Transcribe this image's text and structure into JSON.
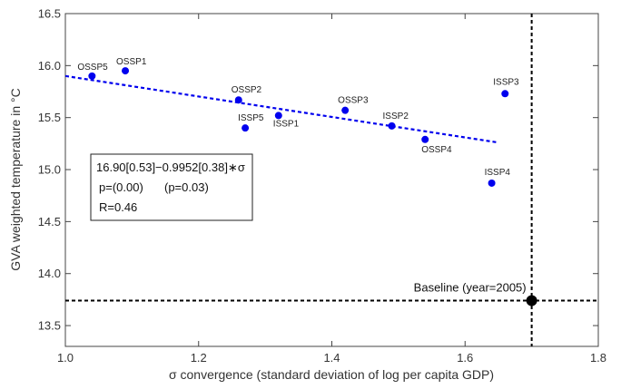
{
  "chart_data": {
    "type": "scatter",
    "title": "",
    "xlabel": "σ convergence (standard deviation of log per capita GDP)",
    "ylabel": "GVA weighted temperature in °C",
    "xlim": [
      1.0,
      1.8
    ],
    "ylim": [
      13.3,
      16.5
    ],
    "xticks": [
      "1.0",
      "1.2",
      "1.4",
      "1.6",
      "1.8"
    ],
    "yticks": [
      "13.5",
      "14.0",
      "14.5",
      "15.0",
      "15.5",
      "16.0",
      "16.5"
    ],
    "grid": false,
    "point_color": "#0000ee",
    "points": [
      {
        "label": "OSSP5",
        "x": 1.04,
        "y": 15.9
      },
      {
        "label": "OSSP1",
        "x": 1.09,
        "y": 15.95
      },
      {
        "label": "OSSP2",
        "x": 1.26,
        "y": 15.67
      },
      {
        "label": "ISSP5",
        "x": 1.27,
        "y": 15.4
      },
      {
        "label": "ISSP1",
        "x": 1.32,
        "y": 15.52
      },
      {
        "label": "OSSP3",
        "x": 1.42,
        "y": 15.57
      },
      {
        "label": "ISSP2",
        "x": 1.49,
        "y": 15.42
      },
      {
        "label": "OSSP4",
        "x": 1.54,
        "y": 15.29
      },
      {
        "label": "ISSP3",
        "x": 1.66,
        "y": 15.73
      },
      {
        "label": "ISSP4",
        "x": 1.64,
        "y": 14.87
      }
    ],
    "fit_line": {
      "x": [
        1.0,
        1.65
      ],
      "y": [
        15.9,
        15.26
      ],
      "style": "dashed",
      "color": "#0000ee"
    },
    "baseline": {
      "label": "Baseline (year=2005)",
      "x": 1.7,
      "y": 13.74,
      "style": "dashed",
      "color": "#000000"
    },
    "stats_box": {
      "line1": "16.90[0.53]−0.9952[0.38]∗σ",
      "line2a": "p=(0.00)",
      "line2b": "(p=0.03)",
      "line3": "R=0.46"
    }
  }
}
